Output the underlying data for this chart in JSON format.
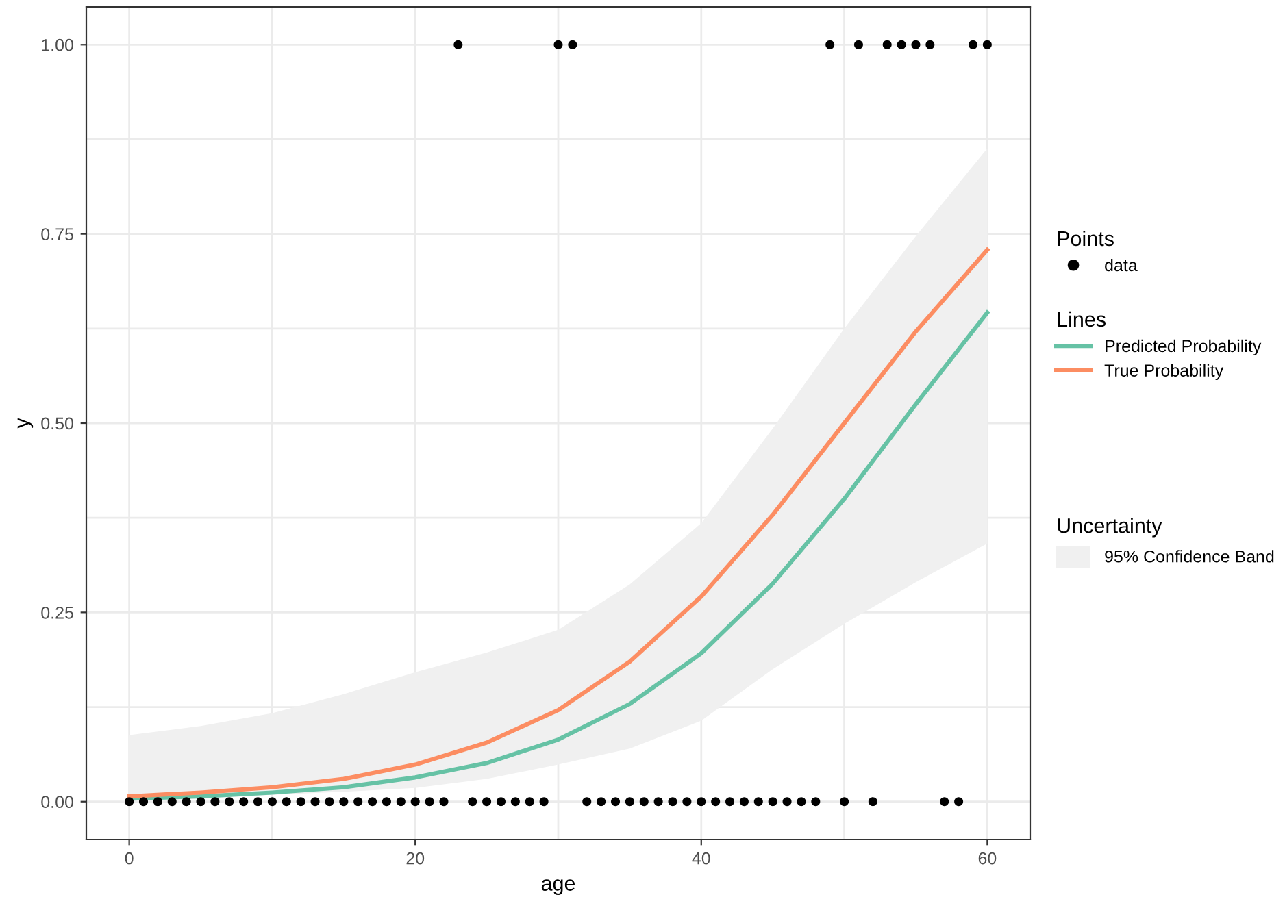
{
  "chart_data": {
    "type": "line",
    "xlabel": "age",
    "ylabel": "y",
    "xlim": [
      -3,
      63
    ],
    "ylim": [
      -0.05,
      1.05
    ],
    "xticks": [
      0,
      {
        "value": 10,
        "label": null
      },
      20,
      {
        "value": 30,
        "label": null
      },
      40,
      {
        "value": 50,
        "label": null
      },
      60
    ],
    "yticks": [
      {
        "value": 0,
        "label": "0.00"
      },
      {
        "value": 0.125,
        "label": null
      },
      {
        "value": 0.25,
        "label": "0.25"
      },
      {
        "value": 0.375,
        "label": null
      },
      {
        "value": 0.5,
        "label": "0.50"
      },
      {
        "value": 0.625,
        "label": null
      },
      {
        "value": 0.75,
        "label": "0.75"
      },
      {
        "value": 0.875,
        "label": null
      },
      {
        "value": 1,
        "label": "1.00"
      }
    ],
    "grid": true,
    "legend": "right",
    "annotations": [
      "Points",
      "Lines",
      "Uncertainty",
      "95% Confidence Band"
    ],
    "series": [
      {
        "name": "Predicted Probability",
        "color": "#66c2a5",
        "x": [
          0,
          5,
          10,
          15,
          20,
          25,
          30,
          35,
          40,
          45,
          50,
          55,
          60
        ],
        "values": [
          0.004,
          0.007,
          0.012,
          0.019,
          0.032,
          0.051,
          0.082,
          0.129,
          0.196,
          0.288,
          0.4,
          0.525,
          0.646
        ],
        "lower": [
          0,
          0.004,
          0.009,
          0.013,
          0.018,
          0.03,
          0.049,
          0.07,
          0.107,
          0.175,
          0.235,
          0.29,
          0.341
        ],
        "upper": [
          0.088,
          0.1,
          0.117,
          0.142,
          0.171,
          0.197,
          0.227,
          0.287,
          0.368,
          0.493,
          0.625,
          0.747,
          0.863
        ]
      },
      {
        "name": "True Probability",
        "color": "#fc8d62",
        "x": [
          0,
          5,
          10,
          15,
          20,
          25,
          30,
          35,
          40,
          45,
          50,
          55,
          60
        ],
        "values": [
          0.007,
          0.012,
          0.019,
          0.03,
          0.049,
          0.078,
          0.121,
          0.185,
          0.271,
          0.379,
          0.5,
          0.621,
          0.729
        ]
      },
      {
        "name": "data",
        "type": "scatter",
        "color": "#000000",
        "marker": "circle",
        "x": [
          0,
          1,
          2,
          3,
          4,
          5,
          6,
          7,
          8,
          9,
          10,
          11,
          12,
          13,
          14,
          15,
          16,
          17,
          18,
          19,
          20,
          21,
          22,
          23,
          24,
          25,
          26,
          27,
          28,
          29,
          30,
          31,
          32,
          33,
          34,
          35,
          36,
          37,
          38,
          39,
          40,
          41,
          42,
          43,
          44,
          45,
          46,
          47,
          48,
          49,
          50,
          51,
          52,
          53,
          54,
          55,
          56,
          57,
          58,
          59,
          60
        ],
        "values": [
          0,
          0,
          0,
          0,
          0,
          0,
          0,
          0,
          0,
          0,
          0,
          0,
          0,
          0,
          0,
          0,
          0,
          0,
          0,
          0,
          0,
          0,
          0,
          1,
          0,
          0,
          0,
          0,
          0,
          0,
          1,
          1,
          0,
          0,
          0,
          0,
          0,
          0,
          0,
          0,
          0,
          0,
          0,
          0,
          0,
          0,
          0,
          0,
          0,
          1,
          0,
          1,
          0,
          1,
          1,
          1,
          1,
          0,
          0,
          1,
          1
        ]
      }
    ]
  }
}
